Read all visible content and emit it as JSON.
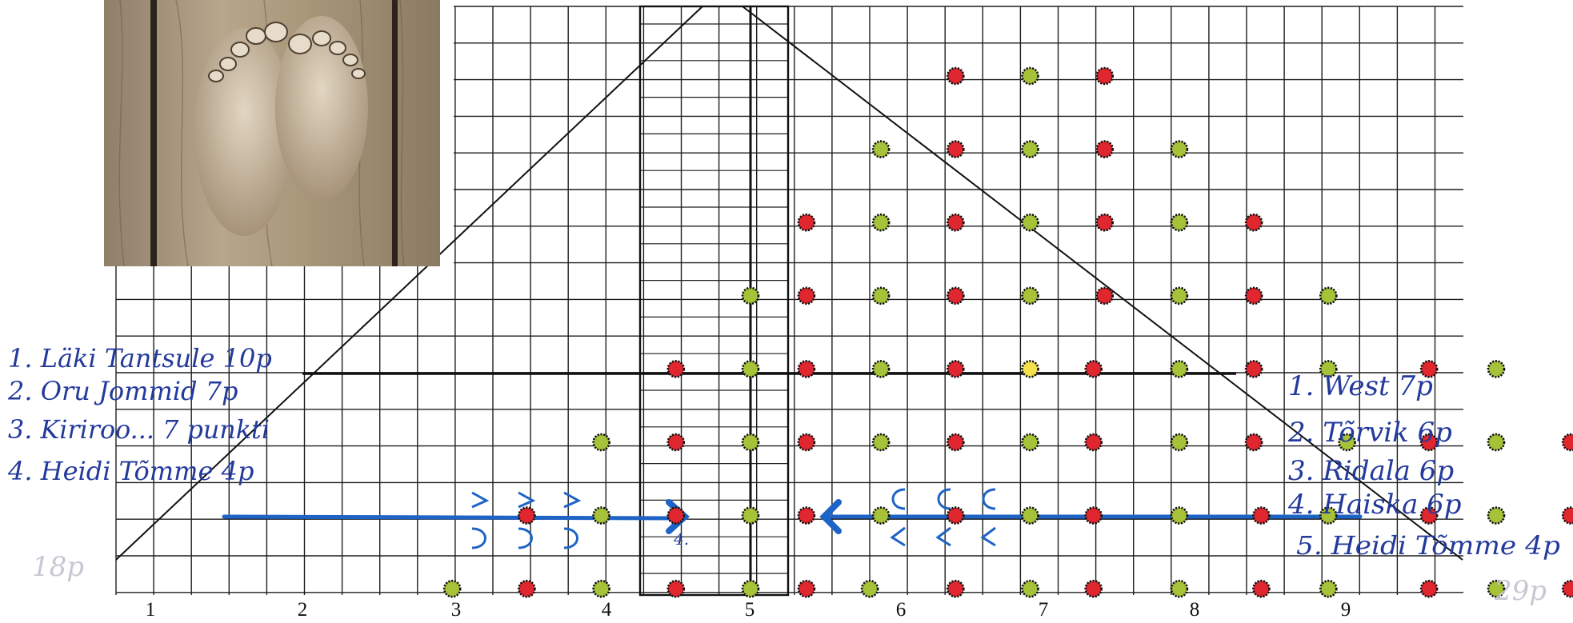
{
  "colors": {
    "grid": "#1e1e1e",
    "red_marker": "#e0262f",
    "green_marker": "#a6c238",
    "yellow_marker": "#f4e04a",
    "arrow_blue": "#1e63c6",
    "handwriting": "#233a9c"
  },
  "photo": {
    "subject": "two footprints carved into a wooden floorboard"
  },
  "column_numbers": [
    "1",
    "2",
    "3",
    "4",
    "5",
    "6",
    "7",
    "8",
    "9"
  ],
  "left_list": [
    "1. Läki Tantsule 10p",
    "2. Oru Jommid 7p",
    "3. Kiriroo... 7 punkti",
    "4. Heidi Tõmme 4p"
  ],
  "right_list": [
    "1. West 7p",
    "2. Tõrvik 6p",
    "3. Ridala 6p",
    "4. Haiska 6p",
    "5. Heidi Tõmme 4p"
  ],
  "marker_note": "4.",
  "faint_notes": {
    "left": "18p",
    "right": "29p"
  },
  "markers": [
    {
      "row": 0,
      "col": 5.5,
      "color": "red"
    },
    {
      "row": 0,
      "col": 7.5,
      "color": "green"
    },
    {
      "row": 0,
      "col": 9.5,
      "color": "red"
    },
    {
      "row": 1,
      "col": 3.5,
      "color": "green"
    },
    {
      "row": 1,
      "col": 5.5,
      "color": "red"
    },
    {
      "row": 1,
      "col": 7.5,
      "color": "green"
    },
    {
      "row": 1,
      "col": 9.5,
      "color": "red"
    },
    {
      "row": 1,
      "col": 11.5,
      "color": "green"
    },
    {
      "row": 2,
      "col": 1.5,
      "color": "red"
    },
    {
      "row": 2,
      "col": 3.5,
      "color": "green"
    },
    {
      "row": 2,
      "col": 5.5,
      "color": "red"
    },
    {
      "row": 2,
      "col": 7.5,
      "color": "green"
    },
    {
      "row": 2,
      "col": 9.5,
      "color": "red"
    },
    {
      "row": 2,
      "col": 11.5,
      "color": "green"
    },
    {
      "row": 2,
      "col": 13.5,
      "color": "red"
    },
    {
      "row": 3,
      "col": 0,
      "color": "green"
    },
    {
      "row": 3,
      "col": 1.5,
      "color": "red"
    },
    {
      "row": 3,
      "col": 3.5,
      "color": "green"
    },
    {
      "row": 3,
      "col": 5.5,
      "color": "red"
    },
    {
      "row": 3,
      "col": 7.5,
      "color": "green"
    },
    {
      "row": 3,
      "col": 9.5,
      "color": "red"
    },
    {
      "row": 3,
      "col": 11.5,
      "color": "green"
    },
    {
      "row": 3,
      "col": 13.5,
      "color": "red"
    },
    {
      "row": 3,
      "col": 15.5,
      "color": "green"
    },
    {
      "row": 4,
      "col": -2,
      "color": "red"
    },
    {
      "row": 4,
      "col": 0,
      "color": "green"
    },
    {
      "row": 4,
      "col": 1.5,
      "color": "red"
    },
    {
      "row": 4,
      "col": 3.5,
      "color": "green"
    },
    {
      "row": 4,
      "col": 5.5,
      "color": "red"
    },
    {
      "row": 4,
      "col": 7.5,
      "color": "yellow"
    },
    {
      "row": 4,
      "col": 9.2,
      "color": "red"
    },
    {
      "row": 4,
      "col": 11.5,
      "color": "green"
    },
    {
      "row": 4,
      "col": 13.5,
      "color": "red"
    },
    {
      "row": 4,
      "col": 15.5,
      "color": "green"
    },
    {
      "row": 4,
      "col": 18.2,
      "color": "red"
    },
    {
      "row": 4,
      "col": 20,
      "color": "green"
    },
    {
      "row": 5,
      "col": -4,
      "color": "green"
    },
    {
      "row": 5,
      "col": -2,
      "color": "red"
    },
    {
      "row": 5,
      "col": 0,
      "color": "green"
    },
    {
      "row": 5,
      "col": 1.5,
      "color": "red"
    },
    {
      "row": 5,
      "col": 3.5,
      "color": "green"
    },
    {
      "row": 5,
      "col": 5.5,
      "color": "red"
    },
    {
      "row": 5,
      "col": 7.5,
      "color": "green"
    },
    {
      "row": 5,
      "col": 9.2,
      "color": "red"
    },
    {
      "row": 5,
      "col": 11.5,
      "color": "green"
    },
    {
      "row": 5,
      "col": 13.5,
      "color": "red"
    },
    {
      "row": 5,
      "col": 16,
      "color": "green"
    },
    {
      "row": 5,
      "col": 18.2,
      "color": "red"
    },
    {
      "row": 5,
      "col": 20,
      "color": "green"
    },
    {
      "row": 5,
      "col": 22,
      "color": "red"
    },
    {
      "row": 6,
      "col": -6,
      "color": "red"
    },
    {
      "row": 6,
      "col": -4,
      "color": "green"
    },
    {
      "row": 6,
      "col": -2,
      "color": "red"
    },
    {
      "row": 6,
      "col": 0,
      "color": "green"
    },
    {
      "row": 6,
      "col": 1.5,
      "color": "red"
    },
    {
      "row": 6,
      "col": 3.5,
      "color": "green"
    },
    {
      "row": 6,
      "col": 5.5,
      "color": "red"
    },
    {
      "row": 6,
      "col": 7.5,
      "color": "green"
    },
    {
      "row": 6,
      "col": 9.2,
      "color": "red"
    },
    {
      "row": 6,
      "col": 11.5,
      "color": "green"
    },
    {
      "row": 6,
      "col": 13.7,
      "color": "red"
    },
    {
      "row": 6,
      "col": 15.5,
      "color": "green"
    },
    {
      "row": 6,
      "col": 18.2,
      "color": "red"
    },
    {
      "row": 6,
      "col": 20,
      "color": "green"
    },
    {
      "row": 6,
      "col": 22,
      "color": "red"
    },
    {
      "row": 6,
      "col": 24,
      "color": "green"
    },
    {
      "row": 7,
      "col": -8,
      "color": "green"
    },
    {
      "row": 7,
      "col": -6,
      "color": "red"
    },
    {
      "row": 7,
      "col": -4,
      "color": "green"
    },
    {
      "row": 7,
      "col": -2,
      "color": "red"
    },
    {
      "row": 7,
      "col": 0,
      "color": "green"
    },
    {
      "row": 7,
      "col": 1.5,
      "color": "red"
    },
    {
      "row": 7,
      "col": 3.2,
      "color": "green"
    },
    {
      "row": 7,
      "col": 5.5,
      "color": "red"
    },
    {
      "row": 7,
      "col": 7.5,
      "color": "green"
    },
    {
      "row": 7,
      "col": 9.2,
      "color": "red"
    },
    {
      "row": 7,
      "col": 11.5,
      "color": "green"
    },
    {
      "row": 7,
      "col": 13.7,
      "color": "red"
    },
    {
      "row": 7,
      "col": 15.5,
      "color": "green"
    },
    {
      "row": 7,
      "col": 18.2,
      "color": "red"
    },
    {
      "row": 7,
      "col": 20,
      "color": "green"
    },
    {
      "row": 7,
      "col": 22,
      "color": "red"
    },
    {
      "row": 7,
      "col": 24,
      "color": "green"
    },
    {
      "row": 7,
      "col": 26,
      "color": "red"
    }
  ]
}
